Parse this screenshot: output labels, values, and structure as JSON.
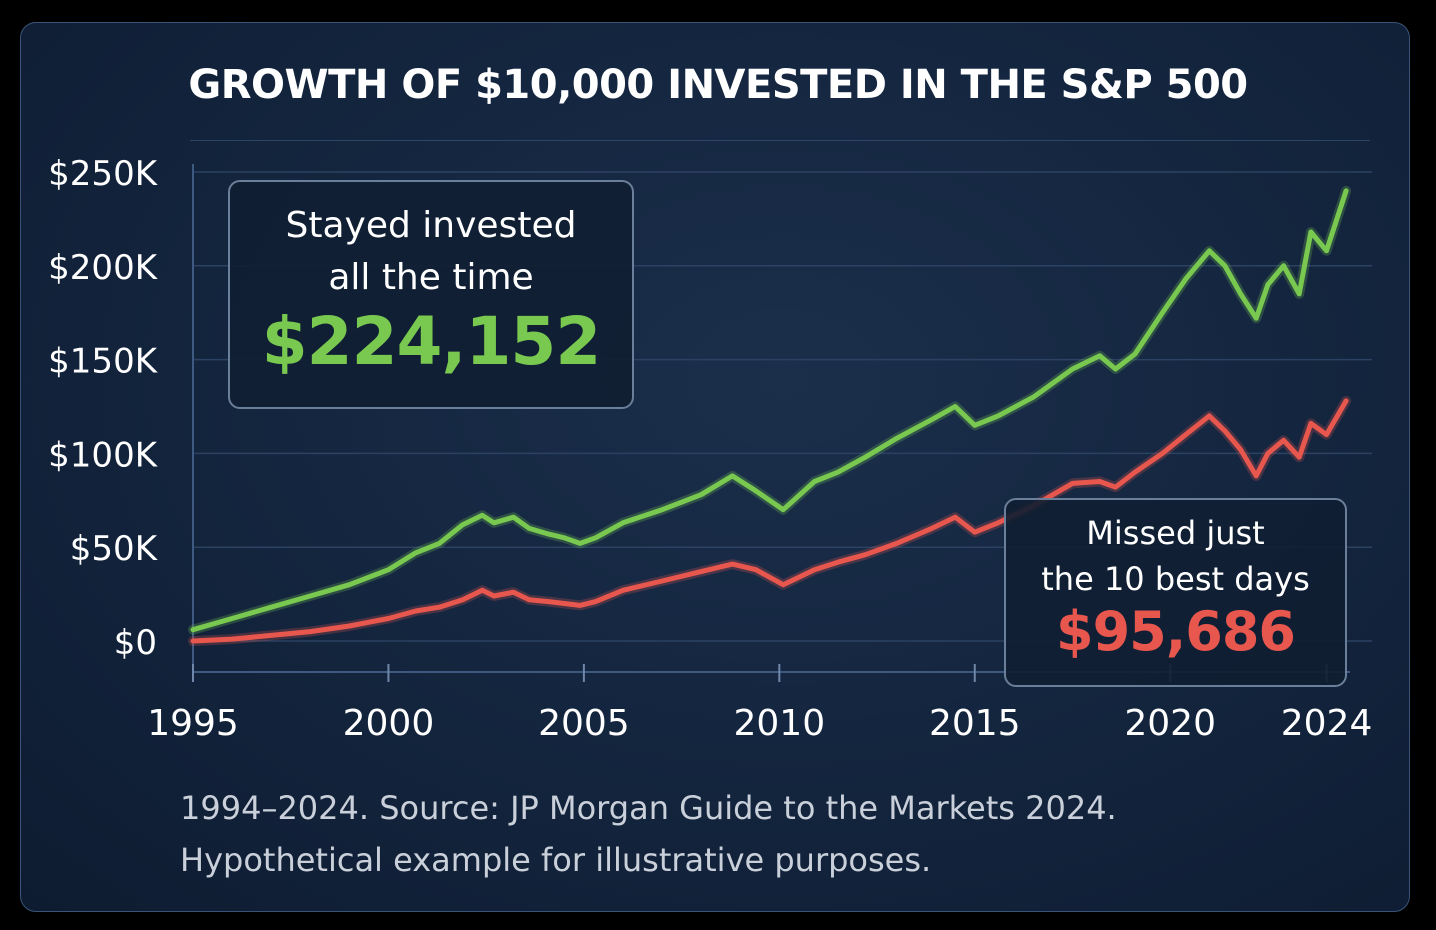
{
  "title": "GROWTH OF $10,000 INVESTED IN THE S&P 500",
  "chart_data": {
    "type": "line",
    "title": "GROWTH OF $10,000 INVESTED IN THE S&P 500",
    "xlabel": "",
    "ylabel": "",
    "xlim": [
      1995,
      2024.6
    ],
    "ylim": [
      0,
      250000
    ],
    "x_ticks": [
      1995,
      2000,
      2005,
      2010,
      2015,
      2020,
      2024
    ],
    "x_tick_labels": [
      "1995",
      "2000",
      "2005",
      "2010",
      "2015",
      "2020",
      "2024"
    ],
    "y_ticks": [
      0,
      50000,
      100000,
      150000,
      200000,
      250000
    ],
    "y_tick_labels": [
      "$0",
      "$50K",
      "$100K",
      "$150K",
      "$200K",
      "$250K"
    ],
    "grid": "horizontal",
    "series": [
      {
        "color": "#79c850",
        "x": [
          1995,
          1996,
          1997,
          1998,
          1999,
          2000,
          2000.7,
          2001.3,
          2001.9,
          2002.4,
          2002.7,
          2003.2,
          2003.6,
          2004.1,
          2004.5,
          2004.9,
          2005.3,
          2006,
          2007,
          2008,
          2008.8,
          2009.4,
          2010.1,
          2010.9,
          2011.5,
          2012.2,
          2013,
          2013.9,
          2014.5,
          2015,
          2015.6,
          2016.5,
          2017.5,
          2018.2,
          2018.6,
          2019.1,
          2019.8,
          2020.4,
          2021,
          2021.4,
          2021.8,
          2022.2,
          2022.5,
          2022.9,
          2023.3,
          2023.6,
          2024,
          2024.5
        ],
        "values": [
          6000,
          12000,
          18000,
          24000,
          30000,
          38000,
          47000,
          52000,
          62000,
          67000,
          63000,
          66000,
          60000,
          57000,
          55000,
          52000,
          55000,
          63000,
          70000,
          78000,
          88000,
          80000,
          70000,
          85000,
          90000,
          98000,
          108000,
          118000,
          125000,
          115000,
          120000,
          130000,
          145000,
          152000,
          145000,
          153000,
          175000,
          193000,
          208000,
          200000,
          185000,
          172000,
          190000,
          200000,
          185000,
          218000,
          208000,
          240000
        ]
      },
      {
        "color": "#e8574e",
        "x": [
          1995,
          1996,
          1997,
          1998,
          1999,
          2000,
          2000.7,
          2001.3,
          2001.9,
          2002.4,
          2002.7,
          2003.2,
          2003.6,
          2004.1,
          2004.5,
          2004.9,
          2005.3,
          2006,
          2007,
          2008,
          2008.8,
          2009.4,
          2010.1,
          2010.9,
          2011.5,
          2012.2,
          2013,
          2013.9,
          2014.5,
          2015,
          2015.6,
          2016.5,
          2017.5,
          2018.2,
          2018.6,
          2019.1,
          2019.8,
          2020.4,
          2021,
          2021.4,
          2021.8,
          2022.2,
          2022.5,
          2022.9,
          2023.3,
          2023.6,
          2024,
          2024.5
        ],
        "values": [
          0,
          1000,
          3000,
          5000,
          8000,
          12000,
          16000,
          18000,
          22000,
          27000,
          24000,
          26000,
          22000,
          21000,
          20000,
          19000,
          21000,
          27000,
          32000,
          37000,
          41000,
          38000,
          30000,
          38000,
          42000,
          46000,
          52000,
          60000,
          66000,
          58000,
          63000,
          72000,
          84000,
          85000,
          82000,
          90000,
          100000,
          110000,
          120000,
          112000,
          102000,
          88000,
          100000,
          107000,
          98000,
          116000,
          110000,
          128000
        ]
      }
    ],
    "annotations": [
      {
        "line1": "Stayed invested",
        "line2": "all the time",
        "value": "$224,152",
        "color": "#79c850"
      },
      {
        "line1": "Missed just",
        "line2": "the 10 best days",
        "value": "$95,686",
        "color": "#e8574e"
      }
    ]
  },
  "source": {
    "line1": "1994–2024. Source: JP Morgan Guide to the Markets 2024.",
    "line2": "Hypothetical example for illustrative purposes."
  }
}
